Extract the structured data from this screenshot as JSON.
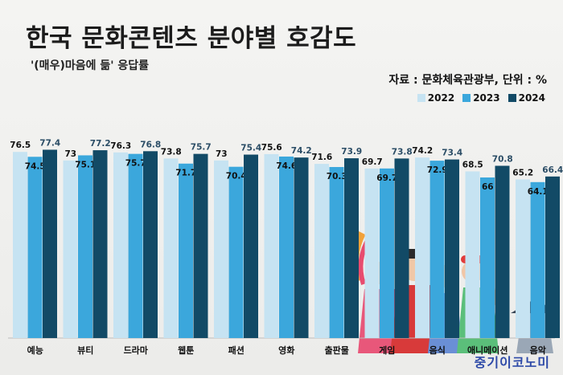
{
  "header": {
    "title": "한국 문화콘텐츠 분야별 호감도",
    "subtitle": "'(매우)마음에 듦' 응답률",
    "source": "자료 : 문화체육관광부, 단위 : %"
  },
  "footer": {
    "brand": "중기이코노미"
  },
  "colors": {
    "s2022": "#c6e3f2",
    "s2023": "#3ba7dc",
    "s2024": "#124a66"
  },
  "chart_data": {
    "type": "bar",
    "title": "한국 문화콘텐츠 분야별 호감도",
    "subtitle": "'(매우)마음에 듦' 응답률",
    "unit": "%",
    "ylim": [
      0,
      100
    ],
    "legend_position": "top-right",
    "categories": [
      "예능",
      "뷰티",
      "드라마",
      "웹툰",
      "패션",
      "영화",
      "출판물",
      "게임",
      "음식",
      "애니메이션",
      "음악"
    ],
    "series": [
      {
        "name": "2022",
        "values": [
          76.5,
          73,
          76.3,
          73.8,
          73,
          75.6,
          71.6,
          69.7,
          74.2,
          68.5,
          65.2
        ]
      },
      {
        "name": "2023",
        "values": [
          74.5,
          75.1,
          75.7,
          71.7,
          70.4,
          74.6,
          70.3,
          69.7,
          72.9,
          66,
          64.1
        ]
      },
      {
        "name": "2024",
        "values": [
          77.4,
          77.2,
          76.8,
          75.7,
          75.4,
          74.2,
          73.9,
          73.8,
          73.4,
          70.8,
          66.4
        ]
      }
    ]
  }
}
